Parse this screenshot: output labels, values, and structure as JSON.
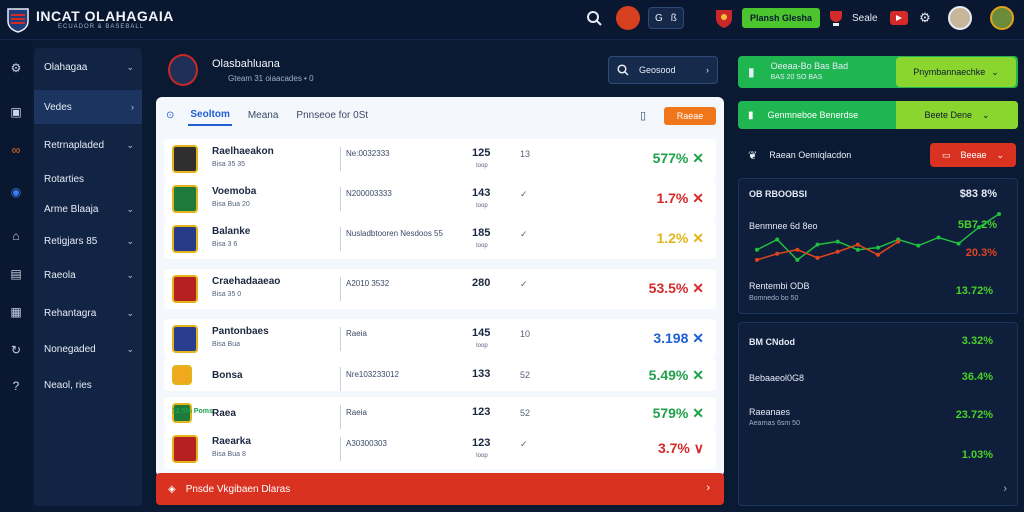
{
  "header": {
    "brand": "INCAT OLAHAGAIA",
    "brand_sub": "ECUADOR & BASEBALL",
    "promo_button": "Plansh Glesha",
    "pill_a": "G",
    "pill_b": "ß",
    "user_label": "Seale"
  },
  "sidebar": {
    "items": [
      {
        "label": "Olahagaa"
      },
      {
        "label": "Vedes"
      },
      {
        "label": "Retrnapladed"
      },
      {
        "label": "Rotarties"
      },
      {
        "label": "Arme Blaaja"
      },
      {
        "label": "Retigjars 85"
      },
      {
        "label": "Raeola"
      },
      {
        "label": "Rehantagra"
      },
      {
        "label": "Nonegaded"
      },
      {
        "label": "Neaol, ries"
      }
    ]
  },
  "main": {
    "title": "Olasbahluana",
    "subtitle": "Gteam 31 oiaacades • 0",
    "search_label": "Geosood",
    "tabs": [
      {
        "label": "Seoltom"
      },
      {
        "label": "Meana"
      },
      {
        "label": "Pnnseoe for 0St"
      }
    ],
    "action_button": "Raeae",
    "rows": [
      {
        "name": "Raelhaeakon",
        "meta": "Bisa 35 35",
        "code": "Ne:0032333",
        "value": "125",
        "value_sub": "Ioop",
        "mark": "13",
        "pct": "577%",
        "pct_color": "#1ea14a",
        "pct_icon": "✕",
        "crest_color": "#2f2f2f"
      },
      {
        "name": "Voemoba",
        "meta": "Bisa Bua 20",
        "code": "N200003333",
        "value": "143",
        "value_sub": "Ioop",
        "mark": "✓",
        "pct": "1.7%",
        "pct_color": "#d42a2a",
        "pct_icon": "✕",
        "crest_color": "#1e7a3a"
      },
      {
        "name": "Balanke",
        "meta": "Bisa 3 6",
        "code": "Nusladbtooren Nesdoos 55",
        "value": "185",
        "value_sub": "Ioop",
        "mark": "✓",
        "pct": "1.2%",
        "pct_color": "#e3b51b",
        "pct_icon": "✕",
        "crest_color": "#283a8a"
      },
      {
        "name": "Craehadaaeao",
        "meta": "Bisa 35 0",
        "code": "A2010 3532",
        "value": "280",
        "value_sub": "",
        "mark": "✓",
        "pct": "53.5%",
        "pct_color": "#d42a2a",
        "pct_icon": "✕",
        "crest_color": "#b52020"
      },
      {
        "name": "Pantonbaes",
        "meta": "Bisa Bua",
        "code": "Raeia",
        "value": "145",
        "value_sub": "Ioop",
        "mark": "10",
        "pct": "3.198",
        "pct_color": "#1e5fd6",
        "pct_icon": "✕",
        "crest_color": "#2a3e8f"
      },
      {
        "name": "Bonsa",
        "meta": "",
        "code": "Nre103233012",
        "value": "133",
        "value_sub": "",
        "mark": "52",
        "pct": "5.49%",
        "pct_color": "#1ea14a",
        "pct_icon": "✕",
        "crest_color": "#f0a81c"
      },
      {
        "name": "Raea",
        "meta": "12.5% Poms",
        "code": "Raeia",
        "value": "123",
        "value_sub": "",
        "mark": "52",
        "pct": "579%",
        "pct_color": "#1ea14a",
        "pct_icon": "✕",
        "crest_color": "#1e7a3a"
      },
      {
        "name": "Raearka",
        "meta": "Bisa Bua 8",
        "code": "A30300303",
        "value": "123",
        "value_sub": "Ioop",
        "mark": "✓",
        "pct": "3.7%",
        "pct_color": "#d42a2a",
        "pct_icon": "∨",
        "crest_color": "#b52020"
      }
    ],
    "alert": "Pnsde Vkgibaen Dlaras"
  },
  "right": {
    "promo_a_title": "Oeeaa-Bo Bas Bad",
    "promo_a_sub": "BAS 20 SO BAS",
    "promo_a_button": "Pnymbannaechke",
    "promo_b_title": "Genmneboe Benerdse",
    "promo_b_select": "Beete Dene",
    "user_row_label": "Raean Oemiqlacdon",
    "user_row_button": "Beeae",
    "chart_card": {
      "title": "OB RBOOBSI",
      "top_value": "$83 8%",
      "line_label": "Benmnee 6d 8eo",
      "line_value": "5B7 2%",
      "line_value_2": "20.3%",
      "footer_label": "Rentembi ODB",
      "footer_sub": "Bomnedo bo 50",
      "footer_value": "13.72%"
    },
    "stats": [
      {
        "label": "BM CNdod",
        "value": "3.32%",
        "color": "#49d12a"
      },
      {
        "label": "Bebaaeol0G8",
        "value": "36.4%",
        "color": "#49d12a"
      },
      {
        "label": "Raeanaes",
        "sub": "Aearnas 6sm 50",
        "value": "23.72%",
        "color": "#49d12a"
      },
      {
        "label": "",
        "value": "1.03%",
        "color": "#49d12a"
      }
    ]
  },
  "chart_data": {
    "type": "line",
    "series": [
      {
        "values": [
          6,
          7,
          5,
          6.5,
          6.8,
          6,
          6.2,
          7,
          6.4,
          7.2,
          6.6,
          8.2,
          9.5
        ],
        "color": "#1fbf3f"
      },
      {
        "values": [
          5,
          5.6,
          6,
          5.2,
          5.8,
          6.5,
          5.5,
          6.8
        ],
        "color": "#e0451e"
      }
    ]
  }
}
